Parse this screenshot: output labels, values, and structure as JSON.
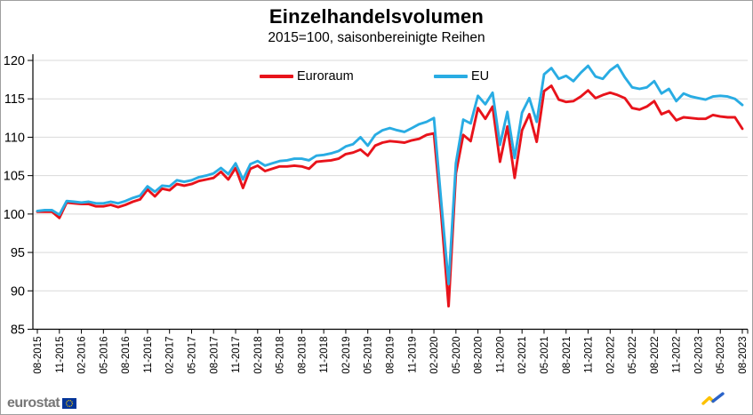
{
  "header": {
    "title": "Einzelhandelsvolumen",
    "subtitle": "2015=100, saisonbereinigte Reihen"
  },
  "chart_data": {
    "type": "line",
    "title": "Einzelhandelsvolumen",
    "subtitle": "2015=100, saisonbereinigte Reihen",
    "xlabel": "",
    "ylabel": "",
    "ylim": [
      85,
      120
    ],
    "yticks": [
      85,
      90,
      95,
      100,
      105,
      110,
      115,
      120
    ],
    "grid": true,
    "legend_position": "top-center",
    "x_tick_every": 3,
    "x": [
      "08-2015",
      "09-2015",
      "10-2015",
      "11-2015",
      "12-2015",
      "01-2016",
      "02-2016",
      "03-2016",
      "04-2016",
      "05-2016",
      "06-2016",
      "07-2016",
      "08-2016",
      "09-2016",
      "10-2016",
      "11-2016",
      "12-2016",
      "01-2017",
      "02-2017",
      "03-2017",
      "04-2017",
      "05-2017",
      "06-2017",
      "07-2017",
      "08-2017",
      "09-2017",
      "10-2017",
      "11-2017",
      "12-2017",
      "01-2018",
      "02-2018",
      "03-2018",
      "04-2018",
      "05-2018",
      "06-2018",
      "07-2018",
      "08-2018",
      "09-2018",
      "10-2018",
      "11-2018",
      "12-2018",
      "01-2019",
      "02-2019",
      "03-2019",
      "04-2019",
      "05-2019",
      "06-2019",
      "07-2019",
      "08-2019",
      "09-2019",
      "10-2019",
      "11-2019",
      "12-2019",
      "01-2020",
      "02-2020",
      "03-2020",
      "04-2020",
      "05-2020",
      "06-2020",
      "07-2020",
      "08-2020",
      "09-2020",
      "10-2020",
      "11-2020",
      "12-2020",
      "01-2021",
      "02-2021",
      "03-2021",
      "04-2021",
      "05-2021",
      "06-2021",
      "07-2021",
      "08-2021",
      "09-2021",
      "10-2021",
      "11-2021",
      "12-2021",
      "01-2022",
      "02-2022",
      "03-2022",
      "04-2022",
      "05-2022",
      "06-2022",
      "07-2022",
      "08-2022",
      "09-2022",
      "10-2022",
      "11-2022",
      "12-2022",
      "01-2023",
      "02-2023",
      "03-2023",
      "04-2023",
      "05-2023",
      "06-2023",
      "07-2023",
      "08-2023"
    ],
    "series": [
      {
        "name": "Euroraum",
        "color": "#e8131b",
        "values": [
          100.3,
          100.3,
          100.3,
          99.5,
          101.5,
          101.4,
          101.3,
          101.3,
          101.0,
          101.0,
          101.2,
          100.9,
          101.2,
          101.6,
          101.9,
          103.2,
          102.3,
          103.3,
          103.1,
          103.9,
          103.7,
          103.9,
          104.3,
          104.5,
          104.7,
          105.5,
          104.5,
          106.0,
          103.4,
          105.9,
          106.3,
          105.6,
          105.9,
          106.2,
          106.2,
          106.3,
          106.2,
          105.9,
          106.8,
          106.9,
          107.0,
          107.2,
          107.8,
          108.0,
          108.4,
          107.6,
          108.9,
          109.3,
          109.5,
          109.4,
          109.3,
          109.6,
          109.8,
          110.3,
          110.5,
          100.0,
          88.0,
          105.3,
          110.3,
          109.5,
          113.8,
          112.4,
          114.0,
          106.8,
          111.4,
          104.7,
          110.9,
          113.0,
          109.4,
          116.0,
          116.7,
          114.9,
          114.6,
          114.7,
          115.3,
          116.1,
          115.1,
          115.5,
          115.8,
          115.5,
          115.1,
          113.8,
          113.6,
          114.0,
          114.7,
          113.0,
          113.4,
          112.2,
          112.6,
          112.5,
          112.4,
          112.4,
          112.9,
          112.7,
          112.6,
          112.6,
          111.1
        ]
      },
      {
        "name": "EU",
        "color": "#29ace3",
        "values": [
          100.4,
          100.5,
          100.5,
          99.9,
          101.7,
          101.6,
          101.5,
          101.6,
          101.4,
          101.4,
          101.6,
          101.4,
          101.7,
          102.1,
          102.4,
          103.6,
          102.9,
          103.7,
          103.6,
          104.4,
          104.2,
          104.4,
          104.8,
          105.0,
          105.3,
          106.0,
          105.2,
          106.6,
          104.5,
          106.5,
          106.9,
          106.3,
          106.6,
          106.9,
          107.0,
          107.2,
          107.2,
          107.0,
          107.6,
          107.7,
          107.9,
          108.2,
          108.8,
          109.1,
          110.0,
          108.9,
          110.3,
          110.9,
          111.2,
          110.9,
          110.7,
          111.2,
          111.7,
          112.0,
          112.5,
          101.6,
          90.9,
          106.6,
          112.3,
          111.8,
          115.4,
          114.3,
          115.8,
          109.0,
          113.3,
          107.3,
          113.2,
          115.1,
          112.0,
          118.2,
          119.0,
          117.6,
          118.0,
          117.3,
          118.4,
          119.3,
          117.9,
          117.6,
          118.7,
          119.4,
          117.8,
          116.5,
          116.3,
          116.5,
          117.3,
          115.7,
          116.3,
          114.7,
          115.7,
          115.3,
          115.1,
          114.9,
          115.3,
          115.4,
          115.3,
          115.0,
          114.2
        ]
      }
    ]
  },
  "footer": {
    "brand": "eurostat",
    "flag_color": "#003399",
    "star_color": "#ffcc00",
    "icon_yellow": "#fdc101",
    "icon_blue": "#2b63c9"
  }
}
